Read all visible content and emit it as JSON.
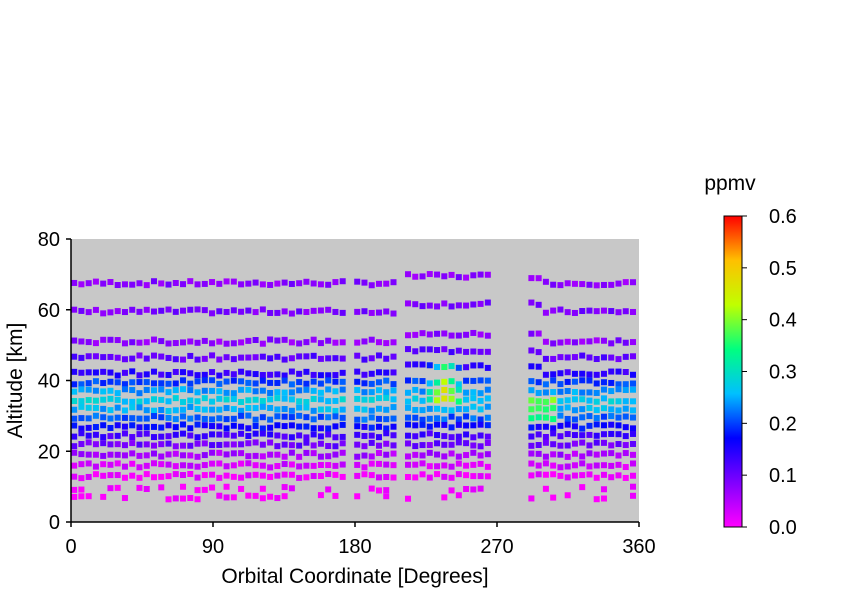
{
  "chart_data": {
    "type": "heatmap",
    "title": "",
    "xlabel": "Orbital Coordinate [Degrees]",
    "ylabel": "Altitude [km]",
    "xlim": [
      0,
      360
    ],
    "ylim": [
      0,
      80
    ],
    "x_ticks": [
      "0",
      "90",
      "180",
      "270",
      "360"
    ],
    "y_ticks": [
      "0",
      "20",
      "40",
      "60",
      "80"
    ],
    "grid": false,
    "plot_background": "#c8c8c8",
    "colorbar": {
      "label": "ppmv",
      "range": [
        0.0,
        0.6
      ],
      "tick_labels": [
        "0.0",
        "0.1",
        "0.2",
        "0.3",
        "0.4",
        "0.5",
        "0.6"
      ],
      "colors": [
        "#ff00ff",
        "#8000ff",
        "#0000ff",
        "#00c0ff",
        "#00ff80",
        "#c0ff00",
        "#ffc000",
        "#ff0000"
      ]
    },
    "gaps_x": [
      [
        176,
        180
      ],
      [
        205,
        212
      ],
      [
        268,
        290
      ]
    ],
    "levels": [
      {
        "altitude": 67.5,
        "value": 0.08
      },
      {
        "altitude": 59.5,
        "value": 0.09
      },
      {
        "altitude": 51.0,
        "value": 0.08
      },
      {
        "altitude": 46.5,
        "value": 0.11
      },
      {
        "altitude": 42.0,
        "value": 0.14
      },
      {
        "altitude": 39.5,
        "value": 0.2
      },
      {
        "altitude": 37.0,
        "value": 0.24
      },
      {
        "altitude": 34.5,
        "value": 0.27
      },
      {
        "altitude": 32.0,
        "value": 0.25
      },
      {
        "altitude": 29.5,
        "value": 0.21
      },
      {
        "altitude": 27.0,
        "value": 0.17
      },
      {
        "altitude": 24.5,
        "value": 0.13
      },
      {
        "altitude": 22.0,
        "value": 0.1
      },
      {
        "altitude": 19.0,
        "value": 0.06
      },
      {
        "altitude": 16.0,
        "value": 0.03
      },
      {
        "altitude": 13.0,
        "value": 0.01
      },
      {
        "altitude": 9.5,
        "value": 0.0
      },
      {
        "altitude": 7.0,
        "value": 0.0
      }
    ]
  }
}
